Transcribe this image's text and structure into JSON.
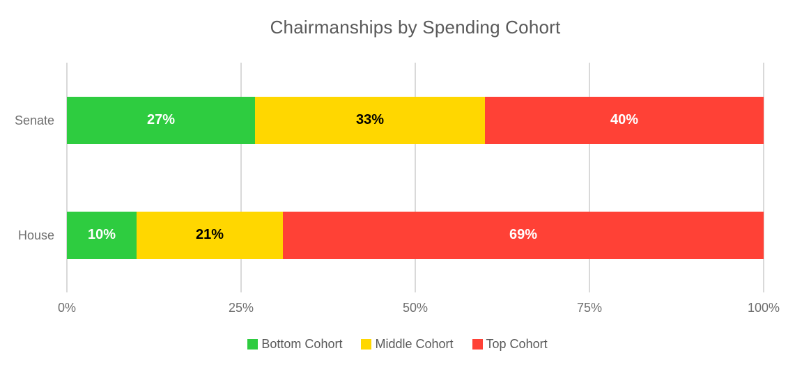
{
  "chart_data": {
    "type": "bar",
    "orientation": "horizontal",
    "stacked": true,
    "title": "Chairmanships by Spending Cohort",
    "categories": [
      "Senate",
      "House"
    ],
    "series": [
      {
        "name": "Bottom Cohort",
        "color": "#2ECC40",
        "label_color": "#FFFFFF",
        "values": [
          27,
          10
        ]
      },
      {
        "name": "Middle Cohort",
        "color": "#FFD700",
        "label_color": "#000000",
        "values": [
          33,
          21
        ]
      },
      {
        "name": "Top Cohort",
        "color": "#FF4136",
        "label_color": "#FFFFFF",
        "values": [
          40,
          69
        ]
      }
    ],
    "data_labels": [
      [
        "27%",
        "33%",
        "40%"
      ],
      [
        "10%",
        "21%",
        "69%"
      ]
    ],
    "x_ticks": [
      {
        "label": "0%",
        "value": 0
      },
      {
        "label": "25%",
        "value": 25
      },
      {
        "label": "50%",
        "value": 50
      },
      {
        "label": "75%",
        "value": 75
      },
      {
        "label": "100%",
        "value": 100
      }
    ],
    "xlim": [
      0,
      100
    ],
    "grid": true,
    "legend_position": "bottom"
  },
  "styles": {
    "title_color": "#595959",
    "category_label_color": "#6E6E6E",
    "tick_label_color": "#6E6E6E",
    "legend_text_color": "#595959",
    "gridline_color": "#D9D9D9",
    "background": "#FFFFFF"
  }
}
